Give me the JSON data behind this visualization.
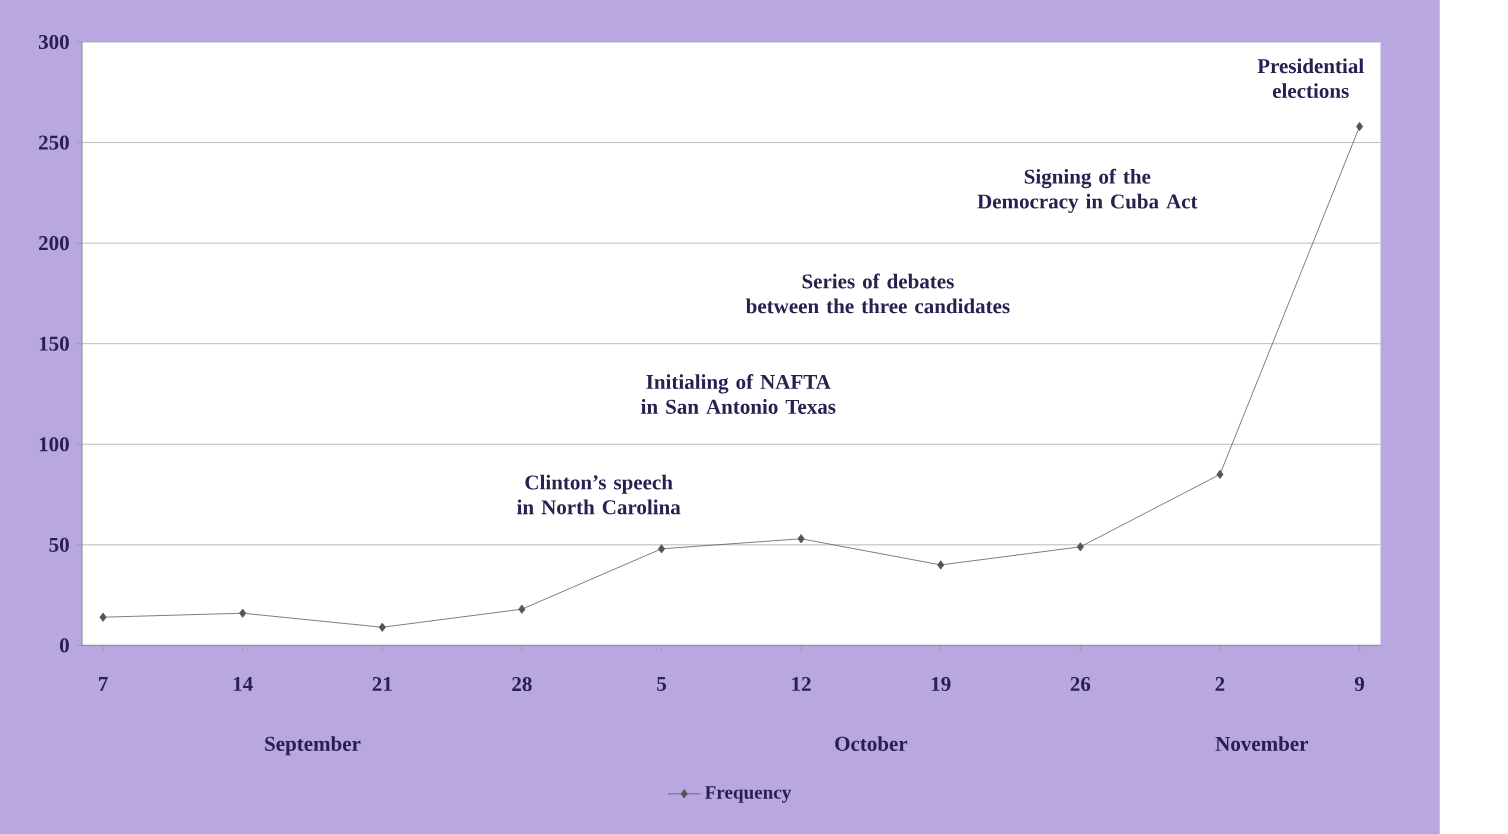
{
  "chart_data": {
    "type": "line",
    "categories": [
      "7",
      "14",
      "21",
      "28",
      "5",
      "12",
      "19",
      "26",
      "2",
      "9"
    ],
    "series": [
      {
        "name": "Frequency",
        "color": "#555555",
        "values": [
          14,
          16,
          9,
          18,
          48,
          53,
          40,
          49,
          85,
          258
        ]
      }
    ],
    "ylim": [
      0,
      300
    ],
    "yticks": [
      0,
      50,
      100,
      150,
      200,
      250,
      300
    ],
    "grid": "y",
    "marker": "diamond",
    "line_style": "solid",
    "legend": "bottom",
    "annotations": [
      "September",
      "October",
      "November",
      "Clinton’s speech\nin North Carolina",
      "Initialing of NAFTA\nin San Antonio Texas",
      "Series of debates\nbetween the three candidates",
      "Signing of the\nDemocracy in Cuba Act",
      "Presidential\nelections"
    ]
  }
}
